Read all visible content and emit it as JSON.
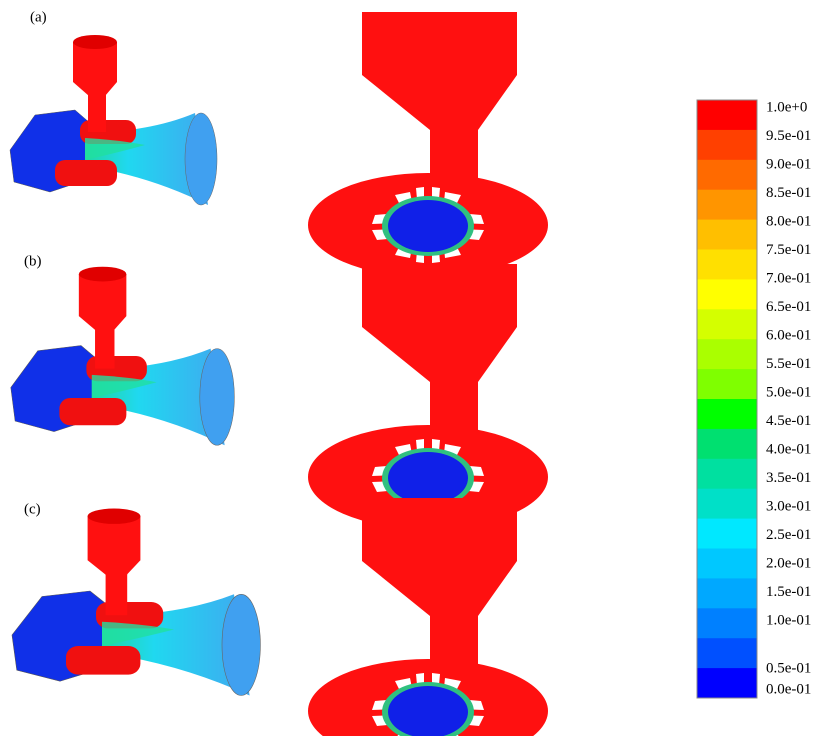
{
  "panels": [
    {
      "label": "(a)"
    },
    {
      "label": "(b)"
    },
    {
      "label": "(c)"
    }
  ],
  "colorbar": {
    "labels": [
      "1.0e+0",
      "9.5e-01",
      "9.0e-01",
      "8.5e-01",
      "8.0e-01",
      "7.5e-01",
      "7.0e-01",
      "6.5e-01",
      "6.0e-01",
      "5.5e-01",
      "5.0e-01",
      "4.5e-01",
      "4.0e-01",
      "3.5e-01",
      "3.0e-01",
      "2.5e-01",
      "2.0e-01",
      "1.5e-01",
      "1.0e-01",
      "0.5e-01",
      "0.0e-01"
    ],
    "colors": [
      "#ff0000",
      "#ff4000",
      "#ff6a00",
      "#ff9500",
      "#ffbf00",
      "#ffe000",
      "#ffff00",
      "#d4ff00",
      "#aaff00",
      "#7fff00",
      "#00ff00",
      "#00e070",
      "#00e0a0",
      "#00e0c8",
      "#00e8ff",
      "#00c8ff",
      "#00a8ff",
      "#0080ff",
      "#0050ff",
      "#0000ff"
    ]
  }
}
